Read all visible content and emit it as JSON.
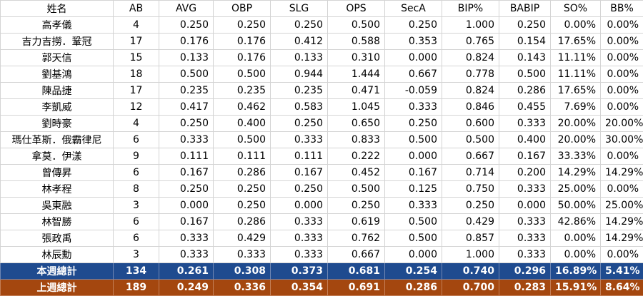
{
  "headers": [
    "姓名",
    "AB",
    "AVG",
    "OBP",
    "SLG",
    "OPS",
    "SecA",
    "BIP%",
    "BABIP",
    "SO%",
    "BB%"
  ],
  "rows": [
    [
      "高孝儀",
      "4",
      "0.250",
      "0.250",
      "0.250",
      "0.500",
      "0.250",
      "1.000",
      "0.250",
      "0.00%",
      "0.00%"
    ],
    [
      "吉力吉撈．鞏冠",
      "17",
      "0.176",
      "0.176",
      "0.412",
      "0.588",
      "0.353",
      "0.765",
      "0.154",
      "17.65%",
      "0.00%"
    ],
    [
      "郭天信",
      "15",
      "0.133",
      "0.176",
      "0.133",
      "0.310",
      "0.000",
      "0.824",
      "0.143",
      "11.11%",
      "0.00%"
    ],
    [
      "劉基鴻",
      "18",
      "0.500",
      "0.500",
      "0.944",
      "1.444",
      "0.667",
      "0.778",
      "0.500",
      "11.11%",
      "0.00%"
    ],
    [
      "陳品捷",
      "17",
      "0.235",
      "0.235",
      "0.235",
      "0.471",
      "-0.059",
      "0.824",
      "0.286",
      "17.65%",
      "0.00%"
    ],
    [
      "李凱威",
      "12",
      "0.417",
      "0.462",
      "0.583",
      "1.045",
      "0.333",
      "0.846",
      "0.455",
      "7.69%",
      "0.00%"
    ],
    [
      "劉時豪",
      "4",
      "0.250",
      "0.400",
      "0.250",
      "0.650",
      "0.250",
      "0.600",
      "0.333",
      "20.00%",
      "20.00%"
    ],
    [
      "瑪仕革斯．俄霸律尼",
      "6",
      "0.333",
      "0.500",
      "0.333",
      "0.833",
      "0.500",
      "0.500",
      "0.400",
      "20.00%",
      "30.00%"
    ],
    [
      "拿莫．伊漾",
      "9",
      "0.111",
      "0.111",
      "0.111",
      "0.222",
      "0.000",
      "0.667",
      "0.167",
      "33.33%",
      "0.00%"
    ],
    [
      "曾傳昇",
      "6",
      "0.167",
      "0.286",
      "0.167",
      "0.452",
      "0.167",
      "0.714",
      "0.200",
      "14.29%",
      "14.29%"
    ],
    [
      "林孝程",
      "8",
      "0.250",
      "0.250",
      "0.250",
      "0.500",
      "0.125",
      "0.750",
      "0.333",
      "25.00%",
      "0.00%"
    ],
    [
      "吳東融",
      "3",
      "0.000",
      "0.250",
      "0.000",
      "0.250",
      "0.333",
      "0.250",
      "0.000",
      "50.00%",
      "25.00%"
    ],
    [
      "林智勝",
      "6",
      "0.167",
      "0.286",
      "0.333",
      "0.619",
      "0.500",
      "0.429",
      "0.333",
      "42.86%",
      "14.29%"
    ],
    [
      "張政禹",
      "6",
      "0.333",
      "0.429",
      "0.333",
      "0.762",
      "0.500",
      "0.857",
      "0.333",
      "0.00%",
      "14.29%"
    ],
    [
      "林辰勳",
      "3",
      "0.333",
      "0.333",
      "0.333",
      "0.667",
      "0.000",
      "1.000",
      "0.333",
      "0.00%",
      "0.00%"
    ]
  ],
  "totals": {
    "this_week": [
      "本週總計",
      "134",
      "0.261",
      "0.308",
      "0.373",
      "0.681",
      "0.254",
      "0.740",
      "0.296",
      "16.89%",
      "5.41%"
    ],
    "last_week": [
      "上週總計",
      "189",
      "0.249",
      "0.336",
      "0.354",
      "0.691",
      "0.286",
      "0.700",
      "0.283",
      "15.91%",
      "8.64%"
    ]
  },
  "colors": {
    "this_week_bg": "#1f4b8f",
    "last_week_bg": "#a4470f"
  }
}
